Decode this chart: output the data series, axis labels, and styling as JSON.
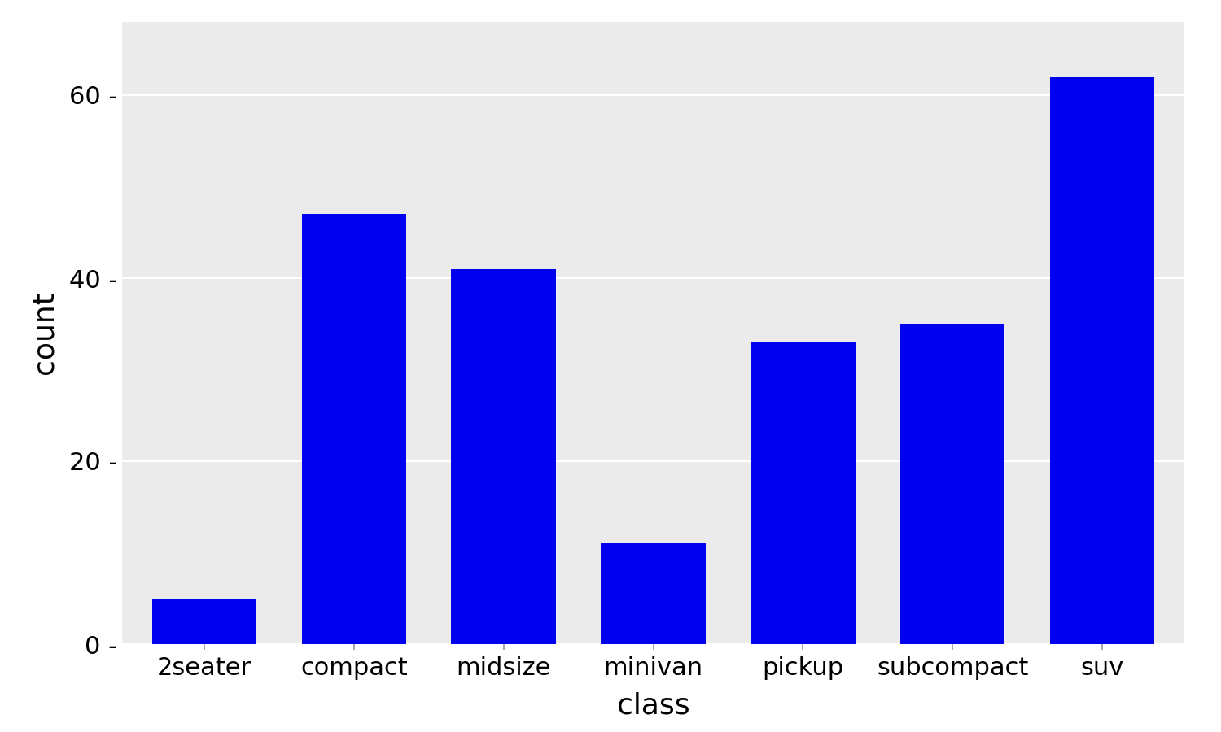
{
  "categories": [
    "2seater",
    "compact",
    "midsize",
    "minivan",
    "pickup",
    "subcompact",
    "suv"
  ],
  "values": [
    5,
    47,
    41,
    11,
    33,
    35,
    62
  ],
  "bar_color": "#0000EE",
  "panel_background": "#EBEBEB",
  "figure_background": "#FFFFFF",
  "grid_color": "#FFFFFF",
  "xlabel": "class",
  "ylabel": "count",
  "xlabel_fontsize": 26,
  "ylabel_fontsize": 26,
  "tick_fontsize": 22,
  "ytick_label_fontsize": 22,
  "ylim_max": 68,
  "yticks": [
    0,
    20,
    40,
    60
  ],
  "bar_width": 0.7,
  "grid_linewidth": 1.5
}
